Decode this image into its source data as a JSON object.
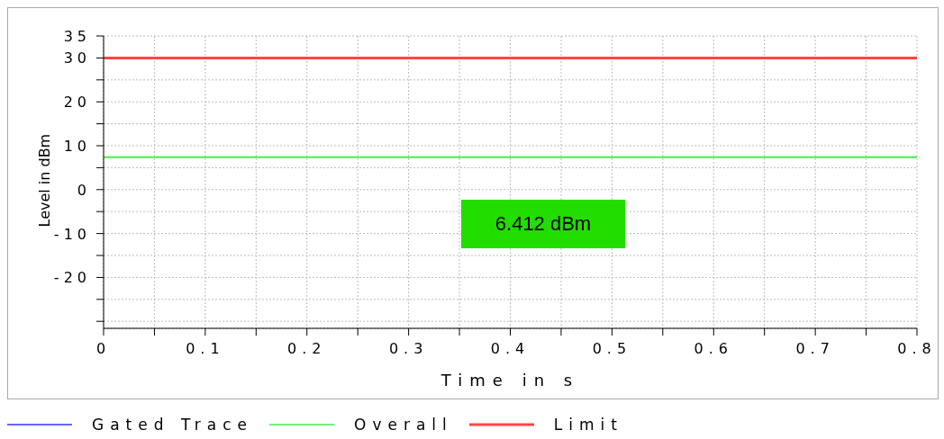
{
  "chart_data": {
    "type": "line",
    "xlabel": "Time in s",
    "ylabel": "Level in dBm",
    "x": [
      0,
      0.8
    ],
    "series": [
      {
        "name": "Gated Trace",
        "color": "#3333ff",
        "values": [
          null,
          null
        ]
      },
      {
        "name": "Overall",
        "color": "#44ee44",
        "values": [
          7.4,
          7.4
        ]
      },
      {
        "name": "Limit",
        "color": "#ff4444",
        "values": [
          30,
          30
        ]
      }
    ],
    "xlim": [
      0,
      0.8
    ],
    "xticks": [
      0,
      {
        "value": 0.05,
        "label": null
      },
      0.1,
      {
        "value": 0.15,
        "label": null
      },
      0.2,
      {
        "value": 0.25,
        "label": null
      },
      0.3,
      {
        "value": 0.35,
        "label": null
      },
      0.4,
      {
        "value": 0.45,
        "label": null
      },
      0.5,
      {
        "value": 0.55,
        "label": null
      },
      0.6,
      {
        "value": 0.65,
        "label": null
      },
      0.7,
      {
        "value": 0.75,
        "label": null
      },
      0.8
    ],
    "ylim": [
      -31.6,
      35
    ],
    "yticks": [
      {
        "value": -30,
        "label": null
      },
      {
        "value": -25,
        "label": null
      },
      -20,
      {
        "value": -15,
        "label": null
      },
      -10,
      {
        "value": -5,
        "label": null
      },
      0,
      {
        "value": 5,
        "label": null
      },
      10,
      {
        "value": 15,
        "label": null
      },
      20,
      {
        "value": 25,
        "label": null
      },
      30,
      35
    ],
    "annotations": [
      "6.412 dBm"
    ],
    "grid": true,
    "legend": "bottom",
    "marker": "none",
    "line_style": "solid"
  }
}
